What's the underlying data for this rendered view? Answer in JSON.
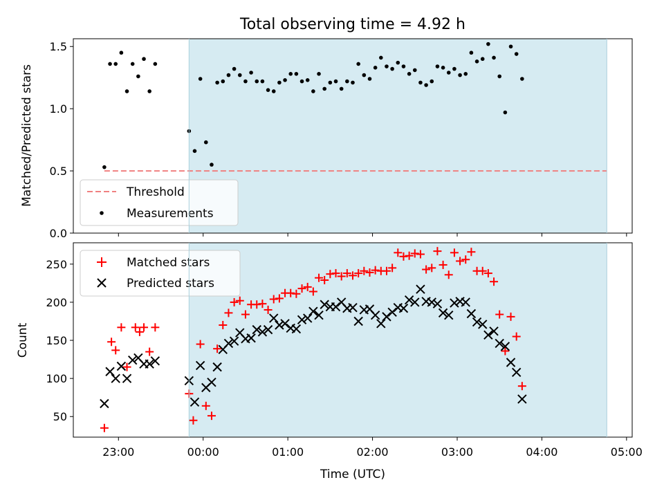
{
  "chart_data": [
    {
      "type": "scatter",
      "title": "Total observing time = 4.92 h",
      "xlabel": "",
      "ylabel": "Matched/Predicted stars",
      "xlim": [
        "22:28",
        "05:04"
      ],
      "ylim": [
        0,
        1.5625
      ],
      "yticks": [
        "0.0",
        "0.5",
        "1.0",
        "1.5"
      ],
      "highlight_span": [
        "23:50",
        "04:46"
      ],
      "highlight_color": "#add8e6",
      "legend_position": "lower-left",
      "threshold": {
        "name": "Threshold",
        "value": 0.5,
        "x_range": [
          "22:50",
          "04:46"
        ],
        "color": "#f08080",
        "style": "dashed"
      },
      "series": [
        {
          "name": "Measurements",
          "marker": "dot",
          "color": "#000000",
          "points": [
            [
              "22:50",
              0.53
            ],
            [
              "22:54",
              1.36
            ],
            [
              "22:58",
              1.36
            ],
            [
              "23:02",
              1.45
            ],
            [
              "23:06",
              1.14
            ],
            [
              "23:10",
              1.36
            ],
            [
              "23:14",
              1.26
            ],
            [
              "23:18",
              1.4
            ],
            [
              "23:22",
              1.14
            ],
            [
              "23:26",
              1.36
            ],
            [
              "23:50",
              0.82
            ],
            [
              "23:54",
              0.66
            ],
            [
              "23:58",
              1.24
            ],
            [
              "00:02",
              0.73
            ],
            [
              "00:06",
              0.55
            ],
            [
              "00:10",
              1.21
            ],
            [
              "00:14",
              1.22
            ],
            [
              "00:18",
              1.27
            ],
            [
              "00:22",
              1.32
            ],
            [
              "00:26",
              1.27
            ],
            [
              "00:30",
              1.22
            ],
            [
              "00:34",
              1.29
            ],
            [
              "00:38",
              1.22
            ],
            [
              "00:42",
              1.22
            ],
            [
              "00:46",
              1.15
            ],
            [
              "00:50",
              1.14
            ],
            [
              "00:54",
              1.21
            ],
            [
              "00:58",
              1.23
            ],
            [
              "01:02",
              1.28
            ],
            [
              "01:06",
              1.28
            ],
            [
              "01:10",
              1.22
            ],
            [
              "01:14",
              1.23
            ],
            [
              "01:18",
              1.14
            ],
            [
              "01:22",
              1.28
            ],
            [
              "01:26",
              1.16
            ],
            [
              "01:30",
              1.21
            ],
            [
              "01:34",
              1.22
            ],
            [
              "01:38",
              1.16
            ],
            [
              "01:42",
              1.22
            ],
            [
              "01:46",
              1.21
            ],
            [
              "01:50",
              1.36
            ],
            [
              "01:54",
              1.27
            ],
            [
              "01:58",
              1.24
            ],
            [
              "02:02",
              1.33
            ],
            [
              "02:06",
              1.41
            ],
            [
              "02:10",
              1.34
            ],
            [
              "02:14",
              1.32
            ],
            [
              "02:18",
              1.37
            ],
            [
              "02:22",
              1.34
            ],
            [
              "02:26",
              1.28
            ],
            [
              "02:30",
              1.31
            ],
            [
              "02:34",
              1.21
            ],
            [
              "02:38",
              1.19
            ],
            [
              "02:42",
              1.22
            ],
            [
              "02:46",
              1.34
            ],
            [
              "02:50",
              1.33
            ],
            [
              "02:54",
              1.29
            ],
            [
              "02:58",
              1.32
            ],
            [
              "03:02",
              1.27
            ],
            [
              "03:06",
              1.28
            ],
            [
              "03:10",
              1.45
            ],
            [
              "03:14",
              1.38
            ],
            [
              "03:18",
              1.4
            ],
            [
              "03:22",
              1.52
            ],
            [
              "03:26",
              1.41
            ],
            [
              "03:30",
              1.26
            ],
            [
              "03:34",
              0.97
            ],
            [
              "03:38",
              1.5
            ],
            [
              "03:42",
              1.44
            ],
            [
              "03:46",
              1.24
            ]
          ]
        }
      ]
    },
    {
      "type": "scatter",
      "title": "",
      "xlabel": "Time (UTC)",
      "ylabel": "Count",
      "xlim": [
        "22:28",
        "05:04"
      ],
      "ylim": [
        23,
        278
      ],
      "xticks": [
        "23:00",
        "00:00",
        "01:00",
        "02:00",
        "03:00",
        "04:00",
        "05:00"
      ],
      "yticks": [
        "50",
        "100",
        "150",
        "200",
        "250"
      ],
      "highlight_span": [
        "23:50",
        "04:46"
      ],
      "highlight_color": "#add8e6",
      "legend_position": "top-left",
      "series": [
        {
          "name": "Matched stars",
          "marker": "plus",
          "color": "#ff0000",
          "points": [
            [
              "22:50",
              35
            ],
            [
              "22:55",
              148
            ],
            [
              "22:58",
              137
            ],
            [
              "23:02",
              167
            ],
            [
              "23:06",
              115
            ],
            [
              "23:12",
              167
            ],
            [
              "23:15",
              161
            ],
            [
              "23:18",
              167
            ],
            [
              "23:22",
              135
            ],
            [
              "23:26",
              167
            ],
            [
              "23:50",
              80
            ],
            [
              "23:53",
              45
            ],
            [
              "23:58",
              145
            ],
            [
              "00:02",
              64
            ],
            [
              "00:06",
              51
            ],
            [
              "00:10",
              139
            ],
            [
              "00:14",
              170
            ],
            [
              "00:18",
              186
            ],
            [
              "00:22",
              200
            ],
            [
              "00:26",
              202
            ],
            [
              "00:30",
              184
            ],
            [
              "00:34",
              197
            ],
            [
              "00:38",
              197
            ],
            [
              "00:42",
              198
            ],
            [
              "00:46",
              190
            ],
            [
              "00:50",
              204
            ],
            [
              "00:54",
              205
            ],
            [
              "00:58",
              212
            ],
            [
              "01:02",
              212
            ],
            [
              "01:06",
              211
            ],
            [
              "01:10",
              218
            ],
            [
              "01:14",
              220
            ],
            [
              "01:18",
              214
            ],
            [
              "01:22",
              232
            ],
            [
              "01:26",
              229
            ],
            [
              "01:30",
              237
            ],
            [
              "01:34",
              238
            ],
            [
              "01:38",
              234
            ],
            [
              "01:42",
              238
            ],
            [
              "01:46",
              235
            ],
            [
              "01:50",
              238
            ],
            [
              "01:54",
              241
            ],
            [
              "01:58",
              239
            ],
            [
              "02:02",
              242
            ],
            [
              "02:06",
              241
            ],
            [
              "02:10",
              241
            ],
            [
              "02:14",
              245
            ],
            [
              "02:18",
              265
            ],
            [
              "02:22",
              260
            ],
            [
              "02:26",
              261
            ],
            [
              "02:30",
              264
            ],
            [
              "02:34",
              263
            ],
            [
              "02:38",
              243
            ],
            [
              "02:42",
              245
            ],
            [
              "02:46",
              267
            ],
            [
              "02:50",
              249
            ],
            [
              "02:54",
              236
            ],
            [
              "02:58",
              265
            ],
            [
              "03:02",
              254
            ],
            [
              "03:06",
              256
            ],
            [
              "03:10",
              266
            ],
            [
              "03:14",
              241
            ],
            [
              "03:18",
              241
            ],
            [
              "03:22",
              238
            ],
            [
              "03:26",
              227
            ],
            [
              "03:30",
              184
            ],
            [
              "03:34",
              136
            ],
            [
              "03:38",
              181
            ],
            [
              "03:42",
              155
            ],
            [
              "03:46",
              90
            ]
          ]
        },
        {
          "name": "Predicted stars",
          "marker": "x",
          "color": "#000000",
          "points": [
            [
              "22:50",
              67
            ],
            [
              "22:54",
              109
            ],
            [
              "22:58",
              100
            ],
            [
              "23:02",
              116
            ],
            [
              "23:06",
              100
            ],
            [
              "23:10",
              124
            ],
            [
              "23:14",
              127
            ],
            [
              "23:18",
              119
            ],
            [
              "23:22",
              119
            ],
            [
              "23:26",
              123
            ],
            [
              "23:50",
              97
            ],
            [
              "23:54",
              69
            ],
            [
              "23:58",
              117
            ],
            [
              "00:02",
              88
            ],
            [
              "00:06",
              95
            ],
            [
              "00:10",
              115
            ],
            [
              "00:14",
              138
            ],
            [
              "00:18",
              146
            ],
            [
              "00:22",
              149
            ],
            [
              "00:26",
              160
            ],
            [
              "00:30",
              152
            ],
            [
              "00:34",
              153
            ],
            [
              "00:38",
              164
            ],
            [
              "00:42",
              161
            ],
            [
              "00:46",
              164
            ],
            [
              "00:50",
              179
            ],
            [
              "00:54",
              170
            ],
            [
              "00:58",
              172
            ],
            [
              "01:02",
              166
            ],
            [
              "01:06",
              165
            ],
            [
              "01:10",
              177
            ],
            [
              "01:14",
              179
            ],
            [
              "01:18",
              188
            ],
            [
              "01:22",
              183
            ],
            [
              "01:26",
              197
            ],
            [
              "01:30",
              194
            ],
            [
              "01:34",
              194
            ],
            [
              "01:38",
              200
            ],
            [
              "01:42",
              192
            ],
            [
              "01:46",
              193
            ],
            [
              "01:50",
              175
            ],
            [
              "01:54",
              190
            ],
            [
              "01:58",
              191
            ],
            [
              "02:02",
              183
            ],
            [
              "02:06",
              172
            ],
            [
              "02:10",
              181
            ],
            [
              "02:14",
              187
            ],
            [
              "02:18",
              193
            ],
            [
              "02:22",
              192
            ],
            [
              "02:26",
              203
            ],
            [
              "02:30",
              200
            ],
            [
              "02:34",
              217
            ],
            [
              "02:38",
              201
            ],
            [
              "02:42",
              200
            ],
            [
              "02:46",
              198
            ],
            [
              "02:50",
              186
            ],
            [
              "02:54",
              183
            ],
            [
              "02:58",
              199
            ],
            [
              "03:02",
              201
            ],
            [
              "03:06",
              200
            ],
            [
              "03:10",
              185
            ],
            [
              "03:14",
              174
            ],
            [
              "03:18",
              171
            ],
            [
              "03:22",
              157
            ],
            [
              "03:26",
              162
            ],
            [
              "03:30",
              146
            ],
            [
              "03:34",
              142
            ],
            [
              "03:38",
              121
            ],
            [
              "03:42",
              108
            ],
            [
              "03:46",
              73
            ]
          ]
        }
      ]
    }
  ]
}
